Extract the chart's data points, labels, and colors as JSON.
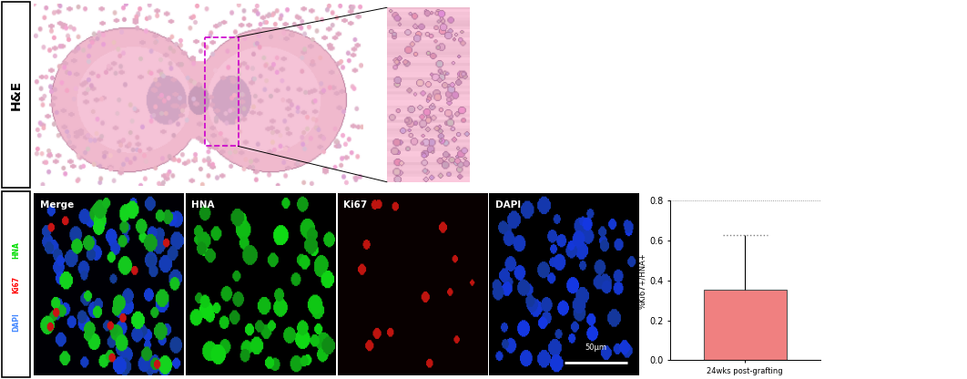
{
  "bar_value": 0.355,
  "bar_error": 0.275,
  "bar_color": "#F08080",
  "bar_edgecolor": "#555555",
  "ylabel": "%Ki67+/HNA+",
  "xlabel": "24wks post-grafting",
  "ylim": [
    0.0,
    0.8
  ],
  "yticks": [
    0.0,
    0.2,
    0.4,
    0.6,
    0.8
  ],
  "ytick_labels": [
    "0.0",
    "0.2",
    "0.4",
    "0.6",
    "0.8"
  ],
  "figure_bg": "#ffffff",
  "row1_label": "H&E",
  "scalebar_text": "50μm"
}
